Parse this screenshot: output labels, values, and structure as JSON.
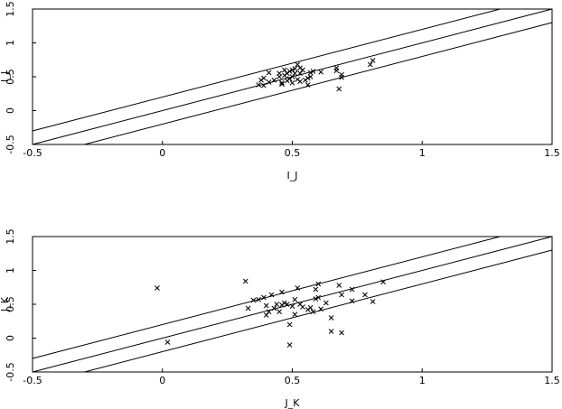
{
  "chart_data": [
    {
      "type": "scatter",
      "xlabel": "I_J",
      "ylabel": "I_J",
      "color": "#000000",
      "marker": "x",
      "xlim": [
        -0.5,
        1.5
      ],
      "ylim": [
        -0.5,
        1.5
      ],
      "xticks": [
        -0.5,
        0,
        0.5,
        1,
        1.5
      ],
      "yticks": [
        -0.5,
        0,
        0.5,
        1,
        1.5
      ],
      "lines": [
        {
          "x": [
            -0.5,
            1.3
          ],
          "y": [
            -0.3,
            1.5
          ]
        },
        {
          "x": [
            -0.5,
            1.5
          ],
          "y": [
            -0.5,
            1.5
          ]
        },
        {
          "x": [
            -0.3,
            1.5
          ],
          "y": [
            -0.5,
            1.3
          ]
        }
      ],
      "points": {
        "x": [
          0.37,
          0.38,
          0.39,
          0.39,
          0.41,
          0.41,
          0.43,
          0.45,
          0.45,
          0.46,
          0.46,
          0.47,
          0.47,
          0.48,
          0.48,
          0.49,
          0.49,
          0.5,
          0.5,
          0.5,
          0.51,
          0.51,
          0.52,
          0.52,
          0.53,
          0.53,
          0.53,
          0.54,
          0.55,
          0.56,
          0.56,
          0.57,
          0.57,
          0.58,
          0.61,
          0.67,
          0.67,
          0.68,
          0.69,
          0.69,
          0.8,
          0.81
        ],
        "y": [
          0.38,
          0.45,
          0.48,
          0.37,
          0.42,
          0.56,
          0.45,
          0.55,
          0.5,
          0.41,
          0.39,
          0.6,
          0.52,
          0.55,
          0.44,
          0.58,
          0.47,
          0.6,
          0.41,
          0.5,
          0.55,
          0.62,
          0.68,
          0.46,
          0.63,
          0.55,
          0.43,
          0.6,
          0.45,
          0.48,
          0.38,
          0.56,
          0.5,
          0.58,
          0.57,
          0.63,
          0.59,
          0.32,
          0.53,
          0.49,
          0.68,
          0.74
        ]
      }
    },
    {
      "type": "scatter",
      "xlabel": "J_K",
      "ylabel": "J_K",
      "color": "#000000",
      "marker": "x",
      "xlim": [
        -0.5,
        1.5
      ],
      "ylim": [
        -0.5,
        1.5
      ],
      "xticks": [
        -0.5,
        0,
        0.5,
        1,
        1.5
      ],
      "yticks": [
        -0.5,
        0,
        0.5,
        1,
        1.5
      ],
      "lines": [
        {
          "x": [
            -0.5,
            1.3
          ],
          "y": [
            -0.3,
            1.5
          ]
        },
        {
          "x": [
            -0.5,
            1.5
          ],
          "y": [
            -0.5,
            1.5
          ]
        },
        {
          "x": [
            -0.3,
            1.5
          ],
          "y": [
            -0.5,
            1.3
          ]
        }
      ],
      "points": {
        "x": [
          -0.02,
          0.02,
          0.32,
          0.33,
          0.35,
          0.37,
          0.39,
          0.4,
          0.4,
          0.41,
          0.42,
          0.43,
          0.44,
          0.45,
          0.46,
          0.46,
          0.47,
          0.48,
          0.49,
          0.49,
          0.5,
          0.51,
          0.51,
          0.52,
          0.53,
          0.54,
          0.56,
          0.57,
          0.58,
          0.59,
          0.59,
          0.6,
          0.6,
          0.61,
          0.63,
          0.65,
          0.65,
          0.68,
          0.69,
          0.69,
          0.73,
          0.73,
          0.78,
          0.81,
          0.85
        ],
        "y": [
          0.74,
          -0.06,
          0.84,
          0.44,
          0.56,
          0.57,
          0.6,
          0.34,
          0.48,
          0.39,
          0.64,
          0.44,
          0.5,
          0.39,
          0.68,
          0.49,
          0.52,
          0.5,
          0.2,
          -0.1,
          0.47,
          0.57,
          0.35,
          0.74,
          0.5,
          0.46,
          0.42,
          0.45,
          0.39,
          0.58,
          0.72,
          0.8,
          0.6,
          0.43,
          0.52,
          0.3,
          0.1,
          0.78,
          0.64,
          0.08,
          0.55,
          0.72,
          0.64,
          0.54,
          0.83
        ]
      }
    }
  ]
}
